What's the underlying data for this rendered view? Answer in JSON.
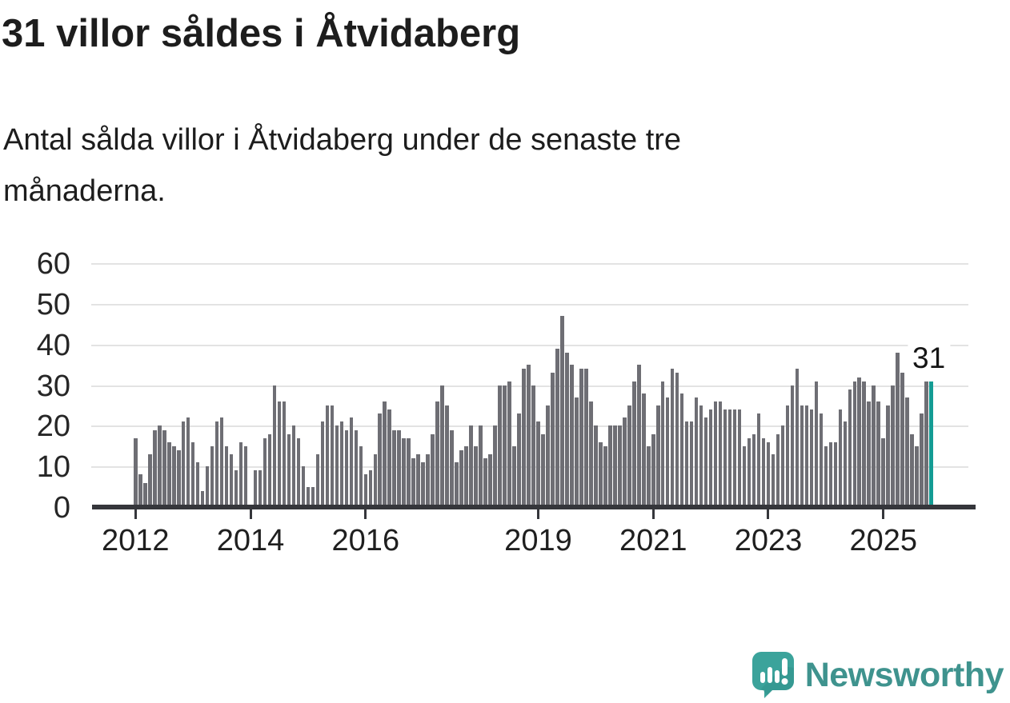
{
  "header": {
    "title": "31 villor såldes i Åtvidaberg",
    "subtitle_lines": [
      "Antal sålda villor i Åtvidaberg under de senaste tre",
      "månaderna."
    ]
  },
  "chart_data": {
    "type": "bar",
    "title": "31 villor såldes i Åtvidaberg",
    "subtitle": "Antal sålda villor i Åtvidaberg under de senaste tre månaderna.",
    "x_start": "2012-01",
    "x_end": "2025-11",
    "x_note": "one bar per month; 2014-01 is missing/zero (gap in chart)",
    "ylim": [
      0,
      60
    ],
    "y_ticks": [
      0,
      10,
      20,
      30,
      40,
      50,
      60
    ],
    "x_ticks": [
      {
        "label": "2012",
        "month_index": 0
      },
      {
        "label": "2014",
        "month_index": 24
      },
      {
        "label": "2016",
        "month_index": 48
      },
      {
        "label": "2019",
        "month_index": 84
      },
      {
        "label": "2021",
        "month_index": 108
      },
      {
        "label": "2023",
        "month_index": 132
      },
      {
        "label": "2025",
        "month_index": 156
      }
    ],
    "values": [
      17,
      8,
      6,
      13,
      19,
      20,
      19,
      16,
      15,
      14,
      21,
      22,
      16,
      11,
      4,
      10,
      15,
      21,
      22,
      15,
      13,
      9,
      16,
      15,
      0,
      9,
      9,
      17,
      18,
      30,
      26,
      26,
      18,
      20,
      17,
      10,
      5,
      5,
      13,
      21,
      25,
      25,
      20,
      21,
      19,
      22,
      19,
      15,
      8,
      9,
      13,
      23,
      26,
      24,
      19,
      19,
      17,
      17,
      12,
      13,
      11,
      13,
      18,
      26,
      30,
      25,
      19,
      11,
      14,
      15,
      20,
      15,
      20,
      12,
      13,
      20,
      30,
      30,
      31,
      15,
      23,
      34,
      35,
      30,
      21,
      18,
      25,
      33,
      39,
      47,
      38,
      35,
      27,
      34,
      34,
      26,
      20,
      16,
      15,
      20,
      20,
      20,
      22,
      25,
      31,
      35,
      28,
      15,
      18,
      25,
      31,
      27,
      34,
      33,
      28,
      21,
      21,
      27,
      25,
      22,
      24,
      26,
      26,
      24,
      24,
      24,
      24,
      15,
      17,
      18,
      23,
      17,
      16,
      13,
      18,
      20,
      25,
      30,
      34,
      25,
      25,
      24,
      31,
      23,
      15,
      16,
      16,
      24,
      21,
      29,
      31,
      32,
      31,
      26,
      30,
      26,
      17,
      25,
      30,
      38,
      33,
      27,
      18,
      15,
      23,
      31,
      31
    ],
    "highlight_index": 166,
    "highlight_value": 31,
    "annotation": {
      "text": "31"
    },
    "bar_color": "#6e6e74",
    "highlight_color": "#149c94",
    "grid": true,
    "legend": "none"
  },
  "footer": {
    "brand": "Newsworthy",
    "brand_color": "#3f938e",
    "icon_color": "#3ba39b"
  }
}
